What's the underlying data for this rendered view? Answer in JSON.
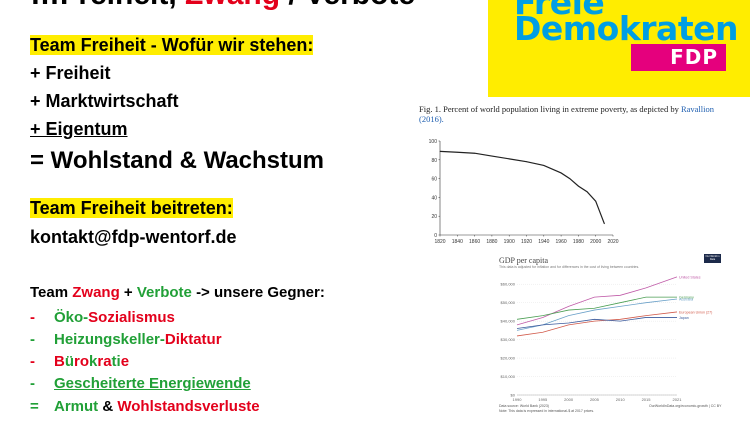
{
  "headline_partial": "...",
  "logo": {
    "line1": "Freie",
    "line2": "Demokraten",
    "abbr": "FDP"
  },
  "section1": {
    "heading": "Team Freiheit - Wofür wir stehen:",
    "items": [
      "+ Freiheit",
      "+ Marktwirtschaft",
      "+ Eigentum"
    ],
    "result": "= Wohlstand & Wachstum"
  },
  "section2": {
    "heading": "Team Freiheit beitreten:",
    "email": "kontakt@fdp-wentorf.de"
  },
  "section3": {
    "heading": {
      "team": "Team",
      "zwang": "Zwang",
      "plus": "+",
      "verbote": "Verbote",
      "rest": "-> unsere Gegner:"
    },
    "bullets": [
      {
        "dash": "-",
        "a": "Öko-",
        "b": "Sozialismus"
      },
      {
        "dash": "-",
        "a": "Heizungskeller-",
        "b": "Diktatur"
      },
      {
        "dash": "-",
        "parts": [
          "B",
          "ü",
          "ro",
          "k",
          "ra",
          "ti",
          "e"
        ]
      },
      {
        "dash": "-",
        "a": "Gescheiterte Energiewende"
      }
    ],
    "result": {
      "eq": "=",
      "a": "Armut",
      "amp": "&",
      "b": "Wohlstandsverluste"
    }
  },
  "fig1": {
    "caption": "Fig. 1. Percent of world population living in extreme poverty, as depicted by",
    "caption_link": "Ravallion (2016).",
    "chart_data": {
      "type": "line",
      "x": [
        1820,
        1840,
        1860,
        1880,
        1900,
        1920,
        1940,
        1960,
        1970,
        1980,
        1990,
        2000,
        2010
      ],
      "series": [
        {
          "values": [
            89,
            88,
            87,
            84,
            81,
            78,
            74,
            66,
            60,
            52,
            46,
            36,
            12
          ]
        }
      ],
      "xlabels": [
        "1820",
        "1840",
        "1860",
        "1880",
        "1900",
        "1920",
        "1940",
        "1960",
        "1980",
        "2000",
        "2020"
      ],
      "ylabels": [
        "0",
        "20",
        "40",
        "60",
        "80",
        "100"
      ],
      "xlim": [
        1820,
        2020
      ],
      "ylim": [
        0,
        100
      ]
    }
  },
  "fig2": {
    "title": "GDP per capita",
    "subtitle": "This data is adjusted for inflation and for differences in the cost of living between countries.",
    "badge": "Our World in Data",
    "source": "Data source: World Bank (2023)",
    "note": "Note: This data is expressed in international-$ at 2017 prices.",
    "credit": "OurWorldInData.org/economic-growth | CC BY",
    "chart_data": {
      "type": "line",
      "x": [
        1990,
        1995,
        2000,
        2005,
        2010,
        2015,
        2021
      ],
      "xlabels": [
        "1990",
        "1995",
        "2000",
        "2005",
        "2010",
        "2015",
        "2021"
      ],
      "ylabels": [
        "$0",
        "$10,000",
        "$20,000",
        "$30,000",
        "$40,000",
        "$50,000",
        "$60,000"
      ],
      "ylim": [
        0,
        65000
      ],
      "series": [
        {
          "name": "United States",
          "color": "#c05ba8",
          "values": [
            38000,
            42000,
            48000,
            53000,
            54000,
            58000,
            64000
          ]
        },
        {
          "name": "Germany",
          "color": "#4a9e52",
          "values": [
            41000,
            43000,
            46000,
            47000,
            50000,
            53000,
            53000
          ]
        },
        {
          "name": "Australia",
          "color": "#6aa0c8",
          "values": [
            35000,
            38000,
            43000,
            46000,
            48000,
            50000,
            52000
          ]
        },
        {
          "name": "European Union (27)",
          "color": "#d15a4a",
          "values": [
            32000,
            34000,
            38000,
            40000,
            41000,
            43000,
            45000
          ]
        },
        {
          "name": "Japan",
          "color": "#3b5a9c",
          "values": [
            36000,
            38000,
            39000,
            41000,
            40000,
            42000,
            42000
          ]
        }
      ]
    }
  }
}
